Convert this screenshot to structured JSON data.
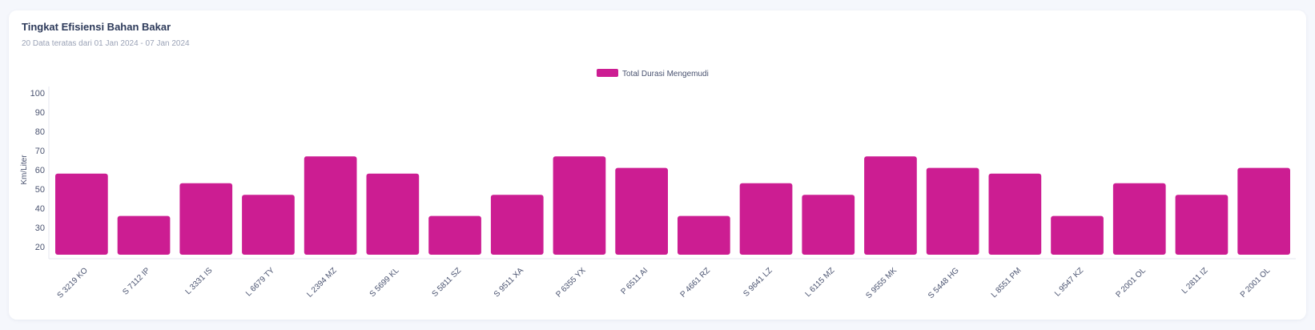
{
  "card": {
    "title": "Tingkat Efisiensi Bahan Bakar",
    "subtitle": "20 Data teratas dari 01 Jan 2024 - 07 Jan 2024"
  },
  "chart_data": {
    "type": "bar",
    "title": "",
    "xlabel": "",
    "ylabel": "Km/Liter",
    "ylim": [
      16,
      103
    ],
    "yticks": [
      20,
      30,
      40,
      50,
      60,
      70,
      80,
      90,
      100
    ],
    "grid": false,
    "legend_placement": "top-center",
    "bar_color": "#cc1d92",
    "series": [
      {
        "name": "Total Durasi Mengemudi",
        "values": [
          58,
          36,
          53,
          47,
          67,
          58,
          36,
          47,
          67,
          61,
          36,
          53,
          47,
          67,
          61,
          58,
          36,
          53,
          47,
          61
        ]
      }
    ],
    "categories": [
      "S 3219 KO",
      "S 7112 IP",
      "L 3331 IS",
      "L 6679 TY",
      "L 2394 MZ",
      "S 5699 KL",
      "S 5811 SZ",
      "S 9511 XA",
      "P 6355 YX",
      "P 6511 AI",
      "P 4661 RZ",
      "S 9641 LZ",
      "L 6115 MZ",
      "S 9555 MK",
      "S 5448 HG",
      "L 8551 PM",
      "L 9547 KZ",
      "P 2001 OL",
      "L 2811 IZ",
      "P 2001 OL"
    ]
  }
}
